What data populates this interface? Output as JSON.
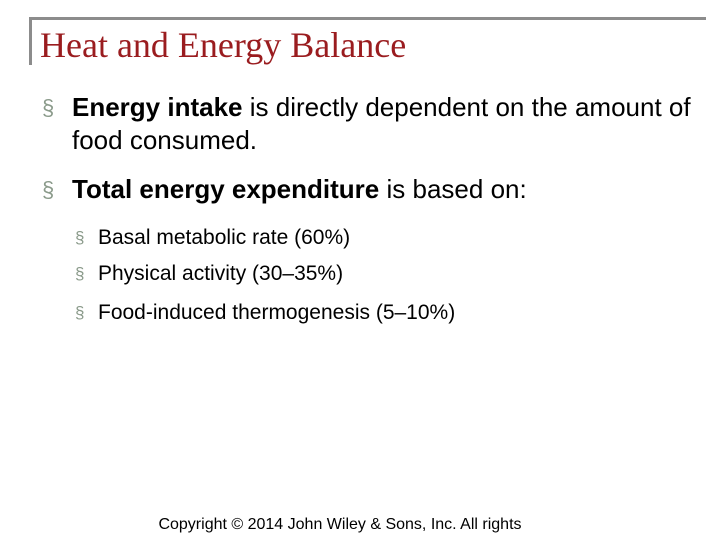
{
  "title": "Heat and Energy Balance",
  "bullet_marker": "§",
  "bullets": [
    {
      "bold": "Energy intake",
      "text": "is directly dependent on the amount of food consumed."
    },
    {
      "bold": "Total energy expenditure",
      "text": "is based on:"
    }
  ],
  "sub_bullets": [
    "Basal metabolic rate (60%)",
    "Physical activity (30–35%)",
    "Food-induced thermogenesis (5–10%)"
  ],
  "footer": "Copyright © 2014 John Wiley & Sons, Inc. All rights"
}
